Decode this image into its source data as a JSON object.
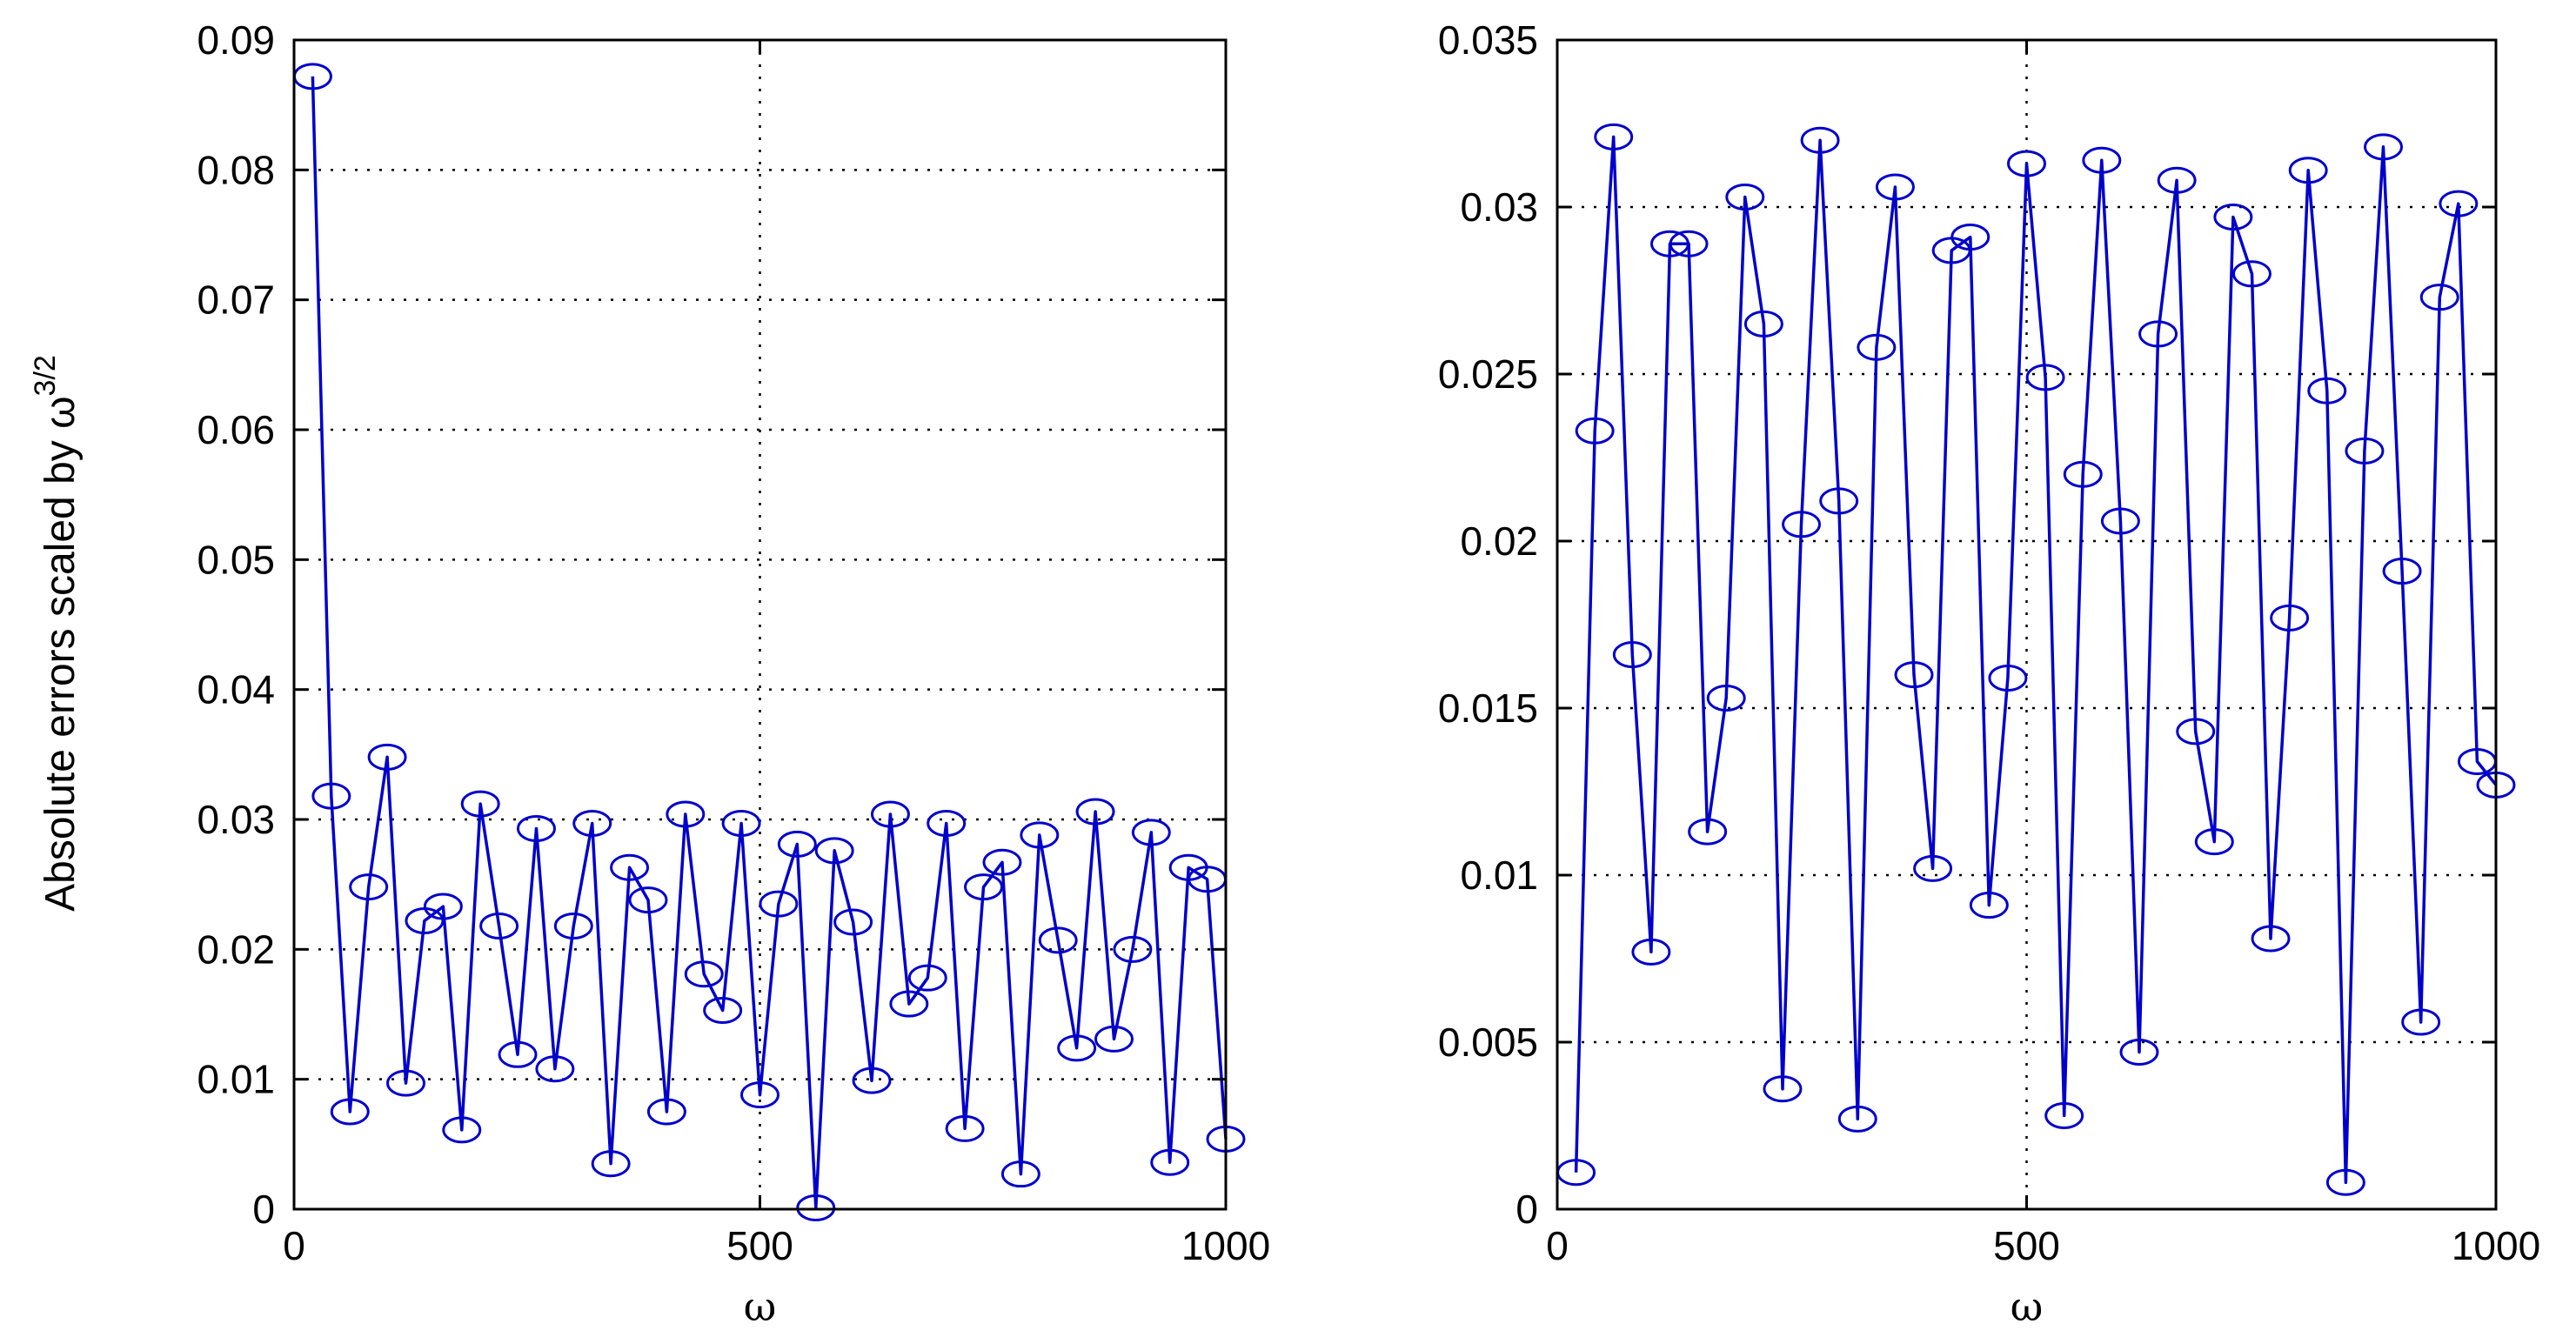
{
  "chart_data": [
    {
      "type": "line",
      "marker": "circle",
      "color": "#0000cc",
      "grid": true,
      "xlabel": "ω",
      "ylabel": "Absolute errors scaled by ω",
      "ylabel_exponent": "3/2",
      "xlim": [
        0,
        1000
      ],
      "ylim": [
        0,
        0.09
      ],
      "xticks": [
        "0",
        "500",
        "1000"
      ],
      "yticks": [
        "0",
        "0.01",
        "0.02",
        "0.03",
        "0.04",
        "0.05",
        "0.06",
        "0.07",
        "0.08",
        "0.09"
      ],
      "x": [
        20,
        40,
        60,
        80,
        100,
        120,
        140,
        160,
        180,
        200,
        220,
        240,
        260,
        280,
        300,
        320,
        340,
        360,
        380,
        400,
        420,
        440,
        460,
        480,
        500,
        520,
        540,
        560,
        580,
        600,
        620,
        640,
        660,
        680,
        700,
        720,
        740,
        760,
        780,
        800,
        820,
        840,
        860,
        880,
        900,
        920,
        940,
        960,
        980,
        1000
      ],
      "y": [
        0.0872,
        0.0318,
        0.0075,
        0.0248,
        0.0348,
        0.0097,
        0.0222,
        0.0233,
        0.0061,
        0.0312,
        0.0218,
        0.0119,
        0.0293,
        0.0108,
        0.0218,
        0.0297,
        0.0035,
        0.0263,
        0.0238,
        0.0075,
        0.0304,
        0.0181,
        0.0153,
        0.0297,
        0.0088,
        0.0235,
        0.0281,
        0.0001,
        0.0276,
        0.0221,
        0.0099,
        0.0304,
        0.0158,
        0.0178,
        0.0297,
        0.0062,
        0.0248,
        0.0267,
        0.0027,
        0.0288,
        0.0207,
        0.0124,
        0.0306,
        0.0131,
        0.02,
        0.029,
        0.0036,
        0.0263,
        0.0254,
        0.0054
      ]
    },
    {
      "type": "line",
      "marker": "circle",
      "color": "#0000cc",
      "grid": true,
      "xlabel": "ω",
      "ylabel": "",
      "xlim": [
        0,
        1000
      ],
      "ylim": [
        0,
        0.035
      ],
      "xticks": [
        "0",
        "500",
        "1000"
      ],
      "yticks": [
        "0",
        "0.005",
        "0.01",
        "0.015",
        "0.02",
        "0.025",
        "0.03",
        "0.035"
      ],
      "x": [
        20,
        40,
        60,
        80,
        100,
        120,
        140,
        160,
        180,
        200,
        220,
        240,
        260,
        280,
        300,
        320,
        340,
        360,
        380,
        400,
        420,
        440,
        460,
        480,
        500,
        520,
        540,
        560,
        580,
        600,
        620,
        640,
        660,
        680,
        700,
        720,
        740,
        760,
        780,
        800,
        820,
        840,
        860,
        880,
        900,
        920,
        940,
        960,
        980,
        1000
      ],
      "y": [
        0.0011,
        0.0233,
        0.0321,
        0.0166,
        0.0077,
        0.0289,
        0.0289,
        0.0113,
        0.0153,
        0.0303,
        0.0265,
        0.0036,
        0.0205,
        0.032,
        0.0212,
        0.0027,
        0.0258,
        0.0306,
        0.016,
        0.0102,
        0.0287,
        0.0291,
        0.0091,
        0.0159,
        0.0313,
        0.0249,
        0.0028,
        0.022,
        0.0314,
        0.0206,
        0.0047,
        0.0262,
        0.0308,
        0.0143,
        0.011,
        0.0297,
        0.028,
        0.0081,
        0.0177,
        0.0311,
        0.0245,
        0.0008,
        0.0227,
        0.0318,
        0.0191,
        0.0056,
        0.0273,
        0.0301,
        0.0134,
        0.0127
      ]
    }
  ]
}
